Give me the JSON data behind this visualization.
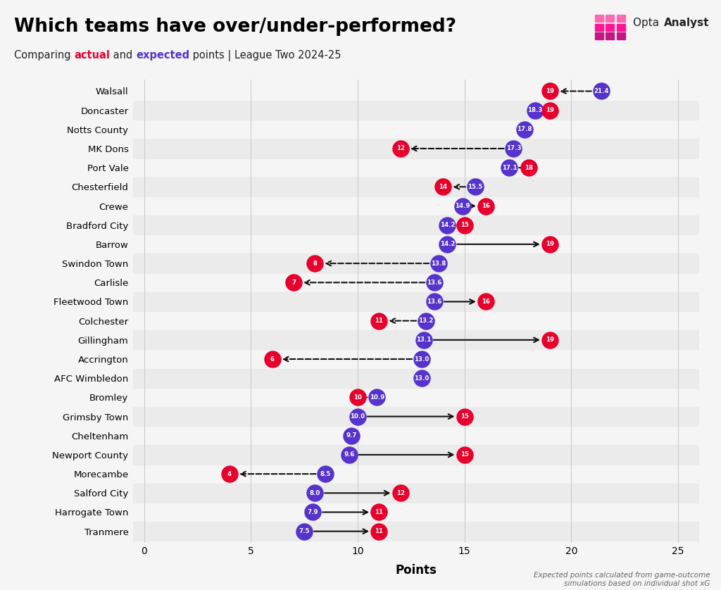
{
  "title": "Which teams have over/under-performed?",
  "subtitle_parts": [
    "Comparing ",
    "actual",
    " and ",
    "expected",
    " points | League Two 2024-25"
  ],
  "subtitle_colors": [
    "#222222",
    "#e8002d",
    "#222222",
    "#5533cc",
    "#222222"
  ],
  "xlabel": "Points",
  "footnote": "Expected points calculated from game-outcome\nsimulations based on individual shot xG",
  "background_color": "#f5f5f5",
  "actual_color": "#e8002d",
  "expected_color": "#5533cc",
  "xlim": [
    -0.5,
    26
  ],
  "teams": [
    "Walsall",
    "Doncaster",
    "Notts County",
    "MK Dons",
    "Port Vale",
    "Chesterfield",
    "Crewe",
    "Bradford City",
    "Barrow",
    "Swindon Town",
    "Carlisle",
    "Fleetwood Town",
    "Colchester",
    "Gillingham",
    "Accrington",
    "AFC Wimbledon",
    "Bromley",
    "Grimsby Town",
    "Cheltenham",
    "Newport County",
    "Morecambe",
    "Salford City",
    "Harrogate Town",
    "Tranmere"
  ],
  "actual_pts": [
    19,
    19,
    null,
    12,
    18,
    14,
    16,
    15,
    19,
    8,
    7,
    16,
    11,
    19,
    6,
    null,
    10,
    15,
    null,
    15,
    4,
    12,
    11,
    11
  ],
  "expected_pts": [
    21.4,
    18.3,
    17.8,
    17.3,
    17.1,
    15.5,
    14.9,
    14.2,
    14.2,
    13.8,
    13.6,
    13.6,
    13.2,
    13.1,
    13.0,
    13.0,
    10.9,
    10.0,
    9.7,
    9.6,
    8.5,
    8.0,
    7.9,
    7.5
  ],
  "grid_color": "#cccccc",
  "stripe_color": "#ebebeb",
  "arrow_color": "#111111",
  "title_fontsize": 19,
  "subtitle_fontsize": 10.5,
  "team_fontsize": 9.5
}
